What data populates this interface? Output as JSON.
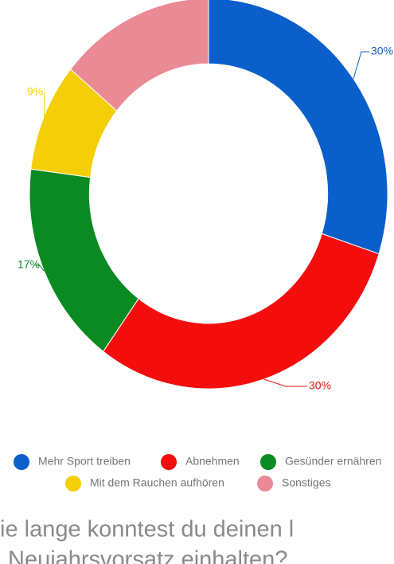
{
  "chart_data": {
    "type": "donut",
    "categories": [
      "Mehr Sport treiben",
      "Abnehmen",
      "Gesünder ernähren",
      "Mit dem Rauchen aufhören",
      "Sonstiges"
    ],
    "values": [
      30,
      30,
      17,
      9,
      14
    ],
    "value_labels": [
      "30%",
      "30%",
      "17%",
      "9%",
      null
    ],
    "colors": [
      "#0b5fcb",
      "#f30d0d",
      "#0a8a22",
      "#f4cf08",
      "#ea8a95"
    ]
  },
  "question": [
    "ie lange konntest du deinen l",
    "Neujahrsvorsatz einhalten?"
  ]
}
